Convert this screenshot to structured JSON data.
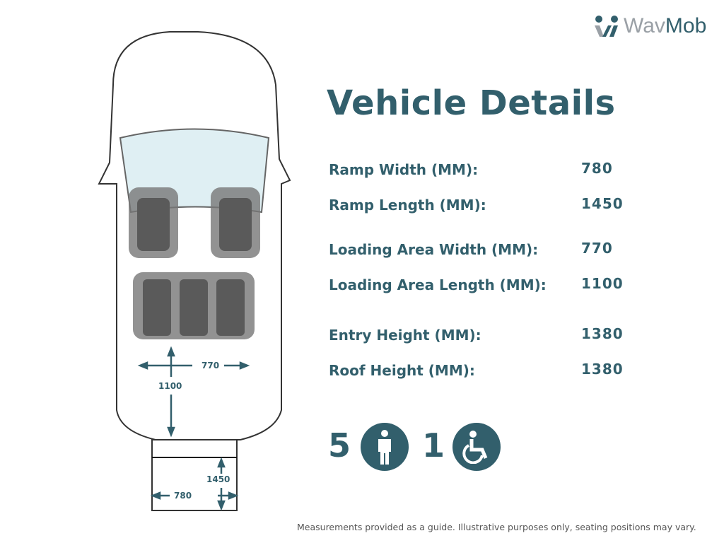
{
  "logo": {
    "part1": "Wav",
    "part2": "Mob"
  },
  "title": "Vehicle Details",
  "details": [
    {
      "label": "Ramp Width (MM):",
      "value": "780"
    },
    {
      "label": "Ramp Length (MM):",
      "value": "1450"
    },
    {
      "label": "Loading Area Width (MM):",
      "value": "770"
    },
    {
      "label": "Loading Area Length (MM):",
      "value": "1100"
    },
    {
      "label": "Entry Height (MM):",
      "value": "1380"
    },
    {
      "label": "Roof Height (MM):",
      "value": "1380"
    }
  ],
  "capacity": {
    "seats": "5",
    "seat_icon": "person-icon",
    "wheelchairs": "1",
    "wheelchair_icon": "wheelchair-icon"
  },
  "diagram": {
    "loading_width": "770",
    "loading_length": "1100",
    "ramp_length": "1450",
    "ramp_width": "780"
  },
  "footer": "Measurements provided as a guide. Illustrative purposes only, seating positions may vary.",
  "colors": {
    "accent": "#325f6c",
    "logo_grey": "#9aa0a6"
  }
}
